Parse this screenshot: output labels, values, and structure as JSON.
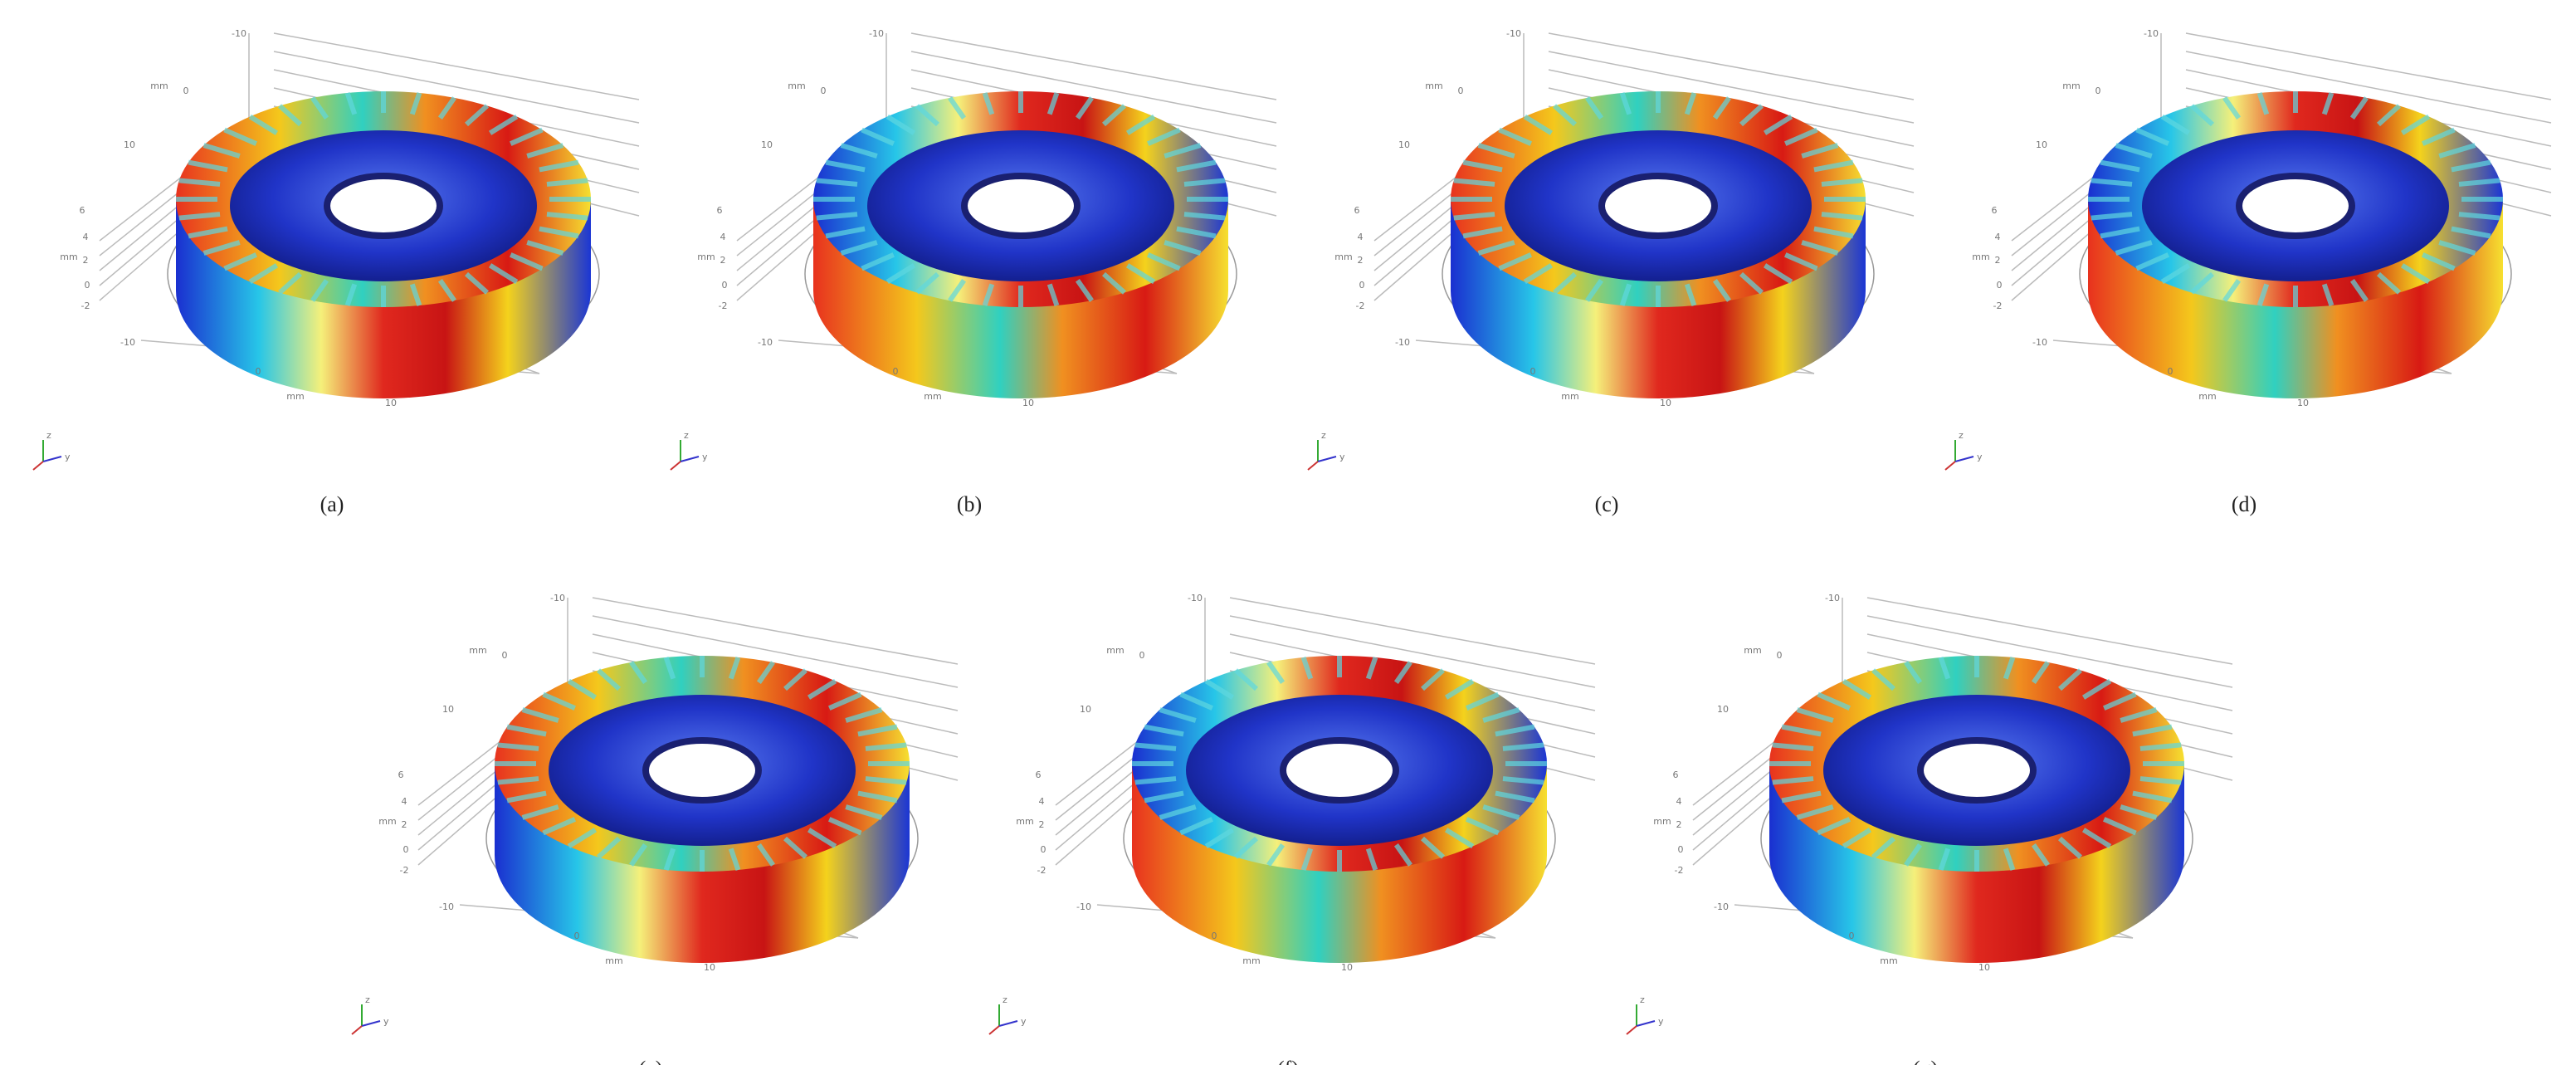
{
  "panels": [
    {
      "label": "(a)"
    },
    {
      "label": "(b)"
    },
    {
      "label": "(c)"
    },
    {
      "label": "(d)"
    },
    {
      "label": "(e)"
    },
    {
      "label": "(f)"
    },
    {
      "label": "(g)"
    }
  ],
  "ticks": [
    "-10",
    "0",
    "10",
    "6",
    "4",
    "2",
    "0",
    "-2",
    "-10",
    "0",
    "10"
  ],
  "unit": "mm",
  "triad": [
    "z",
    "y"
  ]
}
